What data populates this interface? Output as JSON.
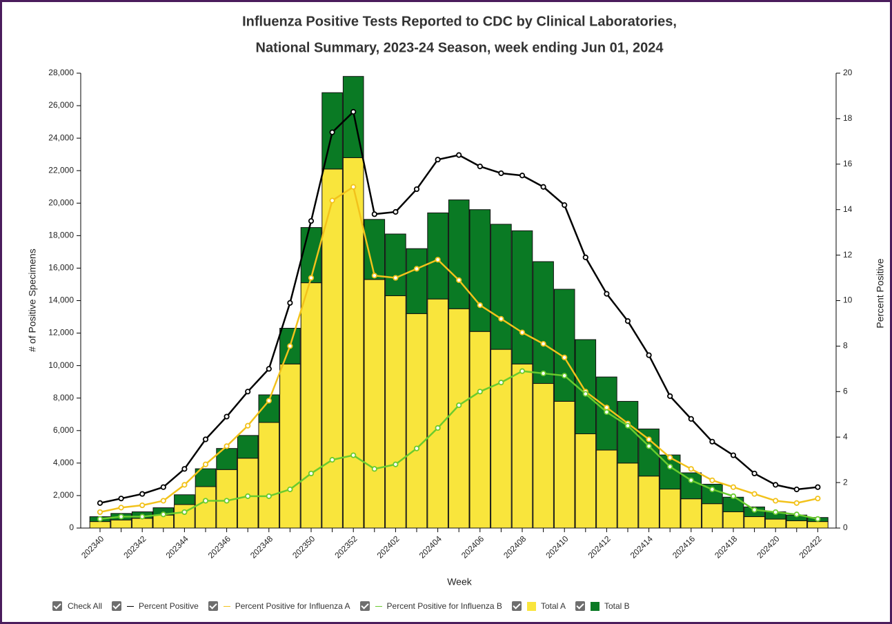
{
  "chart_data": {
    "type": "bar",
    "stacked": true,
    "title": [
      "Influenza Positive Tests Reported to CDC by Clinical Laboratories,",
      "National Summary, 2023-24 Season, week ending Jun 01, 2024"
    ],
    "x_label": "Week",
    "y_label": "# of Positive Specimens",
    "y2_label": "Percent Positive",
    "legend_check_all": "Check All",
    "categories": [
      "202340",
      null,
      "202342",
      null,
      "202344",
      null,
      "202346",
      null,
      "202348",
      null,
      "202350",
      null,
      "202352",
      null,
      "202402",
      null,
      "202404",
      null,
      "202406",
      null,
      "202408",
      null,
      "202410",
      null,
      "202412",
      null,
      "202414",
      null,
      "202416",
      null,
      "202418",
      null,
      "202420",
      null,
      "202422"
    ],
    "ylim": [
      0,
      28000
    ],
    "yticks": [
      0,
      {
        "value": 2000,
        "label": "2,000"
      },
      {
        "value": 4000,
        "label": "4,000"
      },
      {
        "value": 6000,
        "label": "6,000"
      },
      {
        "value": 8000,
        "label": "8,000"
      },
      {
        "value": 10000,
        "label": "10,000"
      },
      {
        "value": 12000,
        "label": "12,000"
      },
      {
        "value": 14000,
        "label": "14,000"
      },
      {
        "value": 16000,
        "label": "16,000"
      },
      {
        "value": 18000,
        "label": "18,000"
      },
      {
        "value": 20000,
        "label": "20,000"
      },
      {
        "value": 22000,
        "label": "22,000"
      },
      {
        "value": 24000,
        "label": "24,000"
      },
      {
        "value": 26000,
        "label": "26,000"
      },
      {
        "value": 28000,
        "label": "28,000"
      }
    ],
    "y2lim": [
      0,
      20
    ],
    "y2ticks": [
      0,
      2,
      4,
      6,
      8,
      10,
      12,
      14,
      16,
      18,
      20
    ],
    "series": [
      {
        "name": "Percent Positive",
        "type": "line",
        "axis": "y2",
        "color": "#000000",
        "values": [
          1.1,
          1.3,
          1.5,
          1.8,
          2.6,
          3.9,
          4.9,
          6.0,
          7.0,
          9.9,
          13.5,
          17.4,
          18.3,
          13.8,
          13.9,
          14.9,
          16.2,
          16.4,
          15.9,
          15.6,
          15.5,
          15.0,
          14.2,
          11.9,
          10.3,
          9.1,
          7.6,
          5.8,
          4.8,
          3.8,
          3.2,
          2.4,
          1.9,
          1.7,
          1.8
        ]
      },
      {
        "name": "Percent Positive for Influenza A",
        "type": "line",
        "axis": "y2",
        "color": "#f2c21b",
        "values": [
          0.7,
          0.9,
          1.0,
          1.2,
          1.9,
          2.8,
          3.6,
          4.5,
          5.6,
          8.0,
          11.0,
          14.4,
          15.0,
          11.1,
          11.0,
          11.4,
          11.8,
          10.9,
          9.8,
          9.2,
          8.6,
          8.1,
          7.5,
          6.0,
          5.3,
          4.6,
          3.9,
          3.1,
          2.6,
          2.1,
          1.8,
          1.5,
          1.2,
          1.1,
          1.3
        ]
      },
      {
        "name": "Percent Positive for Influenza B",
        "type": "line",
        "axis": "y2",
        "color": "#6acb2e",
        "values": [
          0.4,
          0.5,
          0.5,
          0.6,
          0.7,
          1.2,
          1.2,
          1.4,
          1.4,
          1.7,
          2.4,
          3.0,
          3.2,
          2.6,
          2.8,
          3.5,
          4.4,
          5.4,
          6.0,
          6.4,
          6.9,
          6.8,
          6.7,
          5.9,
          5.1,
          4.5,
          3.6,
          2.7,
          2.1,
          1.7,
          1.4,
          0.8,
          0.7,
          0.6,
          0.4
        ]
      },
      {
        "name": "Total A",
        "type": "bar",
        "color": "#f9e53c",
        "values": [
          400,
          500,
          600,
          800,
          1450,
          2550,
          3600,
          4300,
          6500,
          10100,
          15100,
          22100,
          22800,
          15300,
          14300,
          13200,
          14100,
          13500,
          12100,
          11000,
          10100,
          8900,
          7800,
          5800,
          4800,
          4000,
          3200,
          2400,
          1800,
          1500,
          1000,
          700,
          550,
          450,
          400
        ]
      },
      {
        "name": "Total B",
        "type": "bar",
        "color": "#0a7a24",
        "values": [
          300,
          400,
          400,
          450,
          600,
          1100,
          1300,
          1400,
          1700,
          2200,
          3400,
          4700,
          5000,
          3700,
          3800,
          4000,
          5300,
          6700,
          7500,
          7700,
          8200,
          7500,
          6900,
          5800,
          4500,
          3800,
          2900,
          2100,
          1600,
          1200,
          900,
          600,
          450,
          350,
          250
        ]
      }
    ]
  }
}
